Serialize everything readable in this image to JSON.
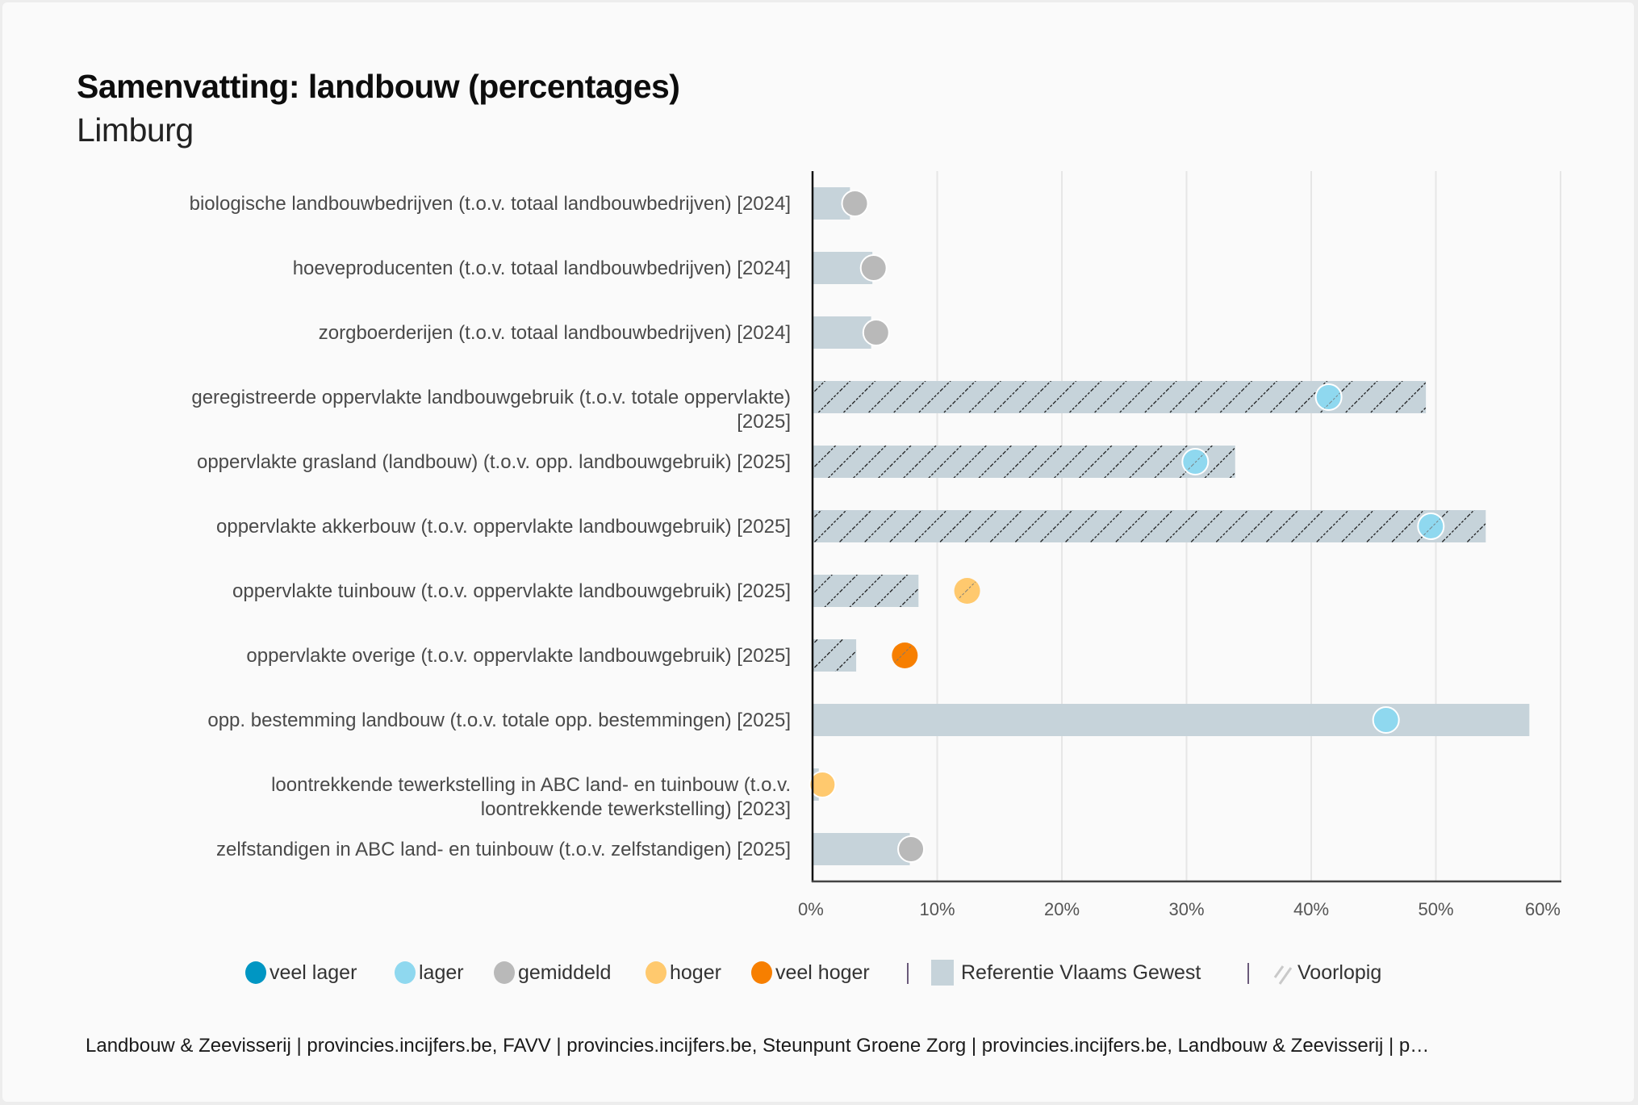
{
  "header": {
    "title": "Samenvatting: landbouw (percentages)",
    "subtitle": "Limburg"
  },
  "chart_data": {
    "type": "bar",
    "orientation": "horizontal",
    "title": "Samenvatting: landbouw (percentages)",
    "subtitle": "Limburg",
    "xlabel": "",
    "ylabel": "",
    "xlim": [
      0,
      60
    ],
    "x_ticks": [
      "0%",
      "10%",
      "20%",
      "30%",
      "40%",
      "50%",
      "60%"
    ],
    "x_tick_values": [
      0,
      10,
      20,
      30,
      40,
      50,
      60
    ],
    "grid": "vertical",
    "legend_position": "bottom",
    "categories": [
      [
        "biologische landbouwbedrijven (t.o.v. totaal landbouwbedrijven) [2024]"
      ],
      [
        "hoeveproducenten (t.o.v. totaal landbouwbedrijven) [2024]"
      ],
      [
        "zorgboerderijen (t.o.v. totaal landbouwbedrijven) [2024]"
      ],
      [
        "geregistreerde oppervlakte landbouwgebruik (t.o.v. totale oppervlakte)",
        "[2025]"
      ],
      [
        "oppervlakte grasland (landbouw) (t.o.v. opp. landbouwgebruik) [2025]"
      ],
      [
        "oppervlakte akkerbouw (t.o.v. oppervlakte landbouwgebruik) [2025]"
      ],
      [
        "oppervlakte tuinbouw (t.o.v. oppervlakte landbouwgebruik) [2025]"
      ],
      [
        "oppervlakte overige (t.o.v. oppervlakte landbouwgebruik) [2025]"
      ],
      [
        "opp. bestemming landbouw (t.o.v. totale opp. bestemmingen) [2025]"
      ],
      [
        "loontrekkende tewerkstelling in ABC land- en tuinbouw (t.o.v.",
        "loontrekkende tewerkstelling) [2023]"
      ],
      [
        "zelfstandigen in ABC land- en tuinbouw (t.o.v. zelfstandigen) [2025]"
      ]
    ],
    "series": [
      {
        "name": "Referentie Vlaams Gewest",
        "kind": "bar",
        "values": [
          3.0,
          4.8,
          4.7,
          49.2,
          33.9,
          54.0,
          8.5,
          3.5,
          57.5,
          0.5,
          7.8
        ]
      },
      {
        "name": "Limburg",
        "kind": "dot",
        "values": [
          3.4,
          4.9,
          5.1,
          41.4,
          30.7,
          49.6,
          12.4,
          7.4,
          46.0,
          0.8,
          7.9
        ],
        "classes": [
          "gemiddeld",
          "gemiddeld",
          "gemiddeld",
          "lager",
          "lager",
          "lager",
          "hoger",
          "veel hoger",
          "lager",
          "hoger",
          "gemiddeld"
        ]
      }
    ],
    "provisional": [
      false,
      false,
      false,
      true,
      true,
      true,
      true,
      true,
      false,
      false,
      false
    ],
    "class_colors": {
      "veel lager": "#0096c3",
      "lager": "#8fd8ef",
      "gemiddeld": "#b9b9b9",
      "hoger": "#ffc96e",
      "veel hoger": "#f77f00"
    },
    "reference_color": "#c6d3da"
  },
  "legend": {
    "items": [
      {
        "label": "veel lager",
        "color": "#0096c3"
      },
      {
        "label": "lager",
        "color": "#8fd8ef"
      },
      {
        "label": "gemiddeld",
        "color": "#b9b9b9"
      },
      {
        "label": "hoger",
        "color": "#ffc96e"
      },
      {
        "label": "veel hoger",
        "color": "#f77f00"
      }
    ],
    "separator": "|",
    "reference_label": "Referentie Vlaams Gewest",
    "provisional_label": "Voorlopig"
  },
  "footer": {
    "source": "Landbouw & Zeevisserij | provincies.incijfers.be, FAVV | provincies.incijfers.be, Steunpunt Groene Zorg | provincies.incijfers.be, Landbouw & Zeevisserij | p…"
  }
}
